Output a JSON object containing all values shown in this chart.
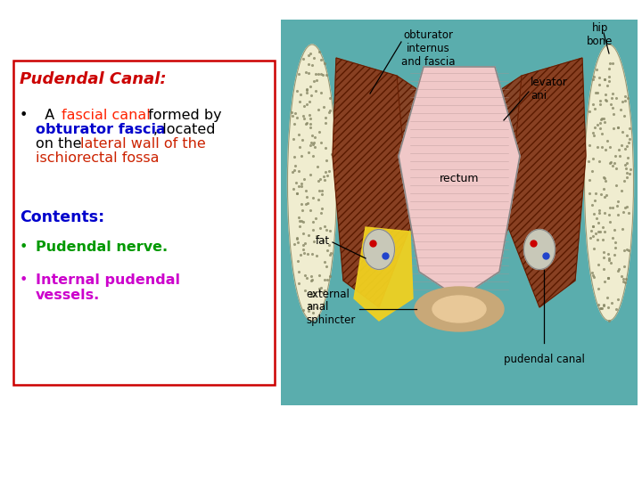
{
  "background_color": "#ffffff",
  "box_border_color": "#cc0000",
  "title_text": "Pudendal Canal:",
  "title_color": "#cc0000",
  "title_fontsize": 13,
  "contents_text": "Contents:",
  "contents_color": "#0000cc",
  "bullet2_text": "Pudendal nerve.",
  "bullet2_color": "#009900",
  "bullet3_text": "Internal pudendal\nvessels.",
  "bullet3_color": "#cc00cc",
  "font_family": "DejaVu Sans",
  "main_fontsize": 11.5,
  "teal_bg": "#5aadad",
  "bone_color": "#f0edd0",
  "muscle_color": "#8B3A1A",
  "rectum_color": "#f0c8c8",
  "fat_color": "#f0d020",
  "sphincter_color": "#7a3010"
}
